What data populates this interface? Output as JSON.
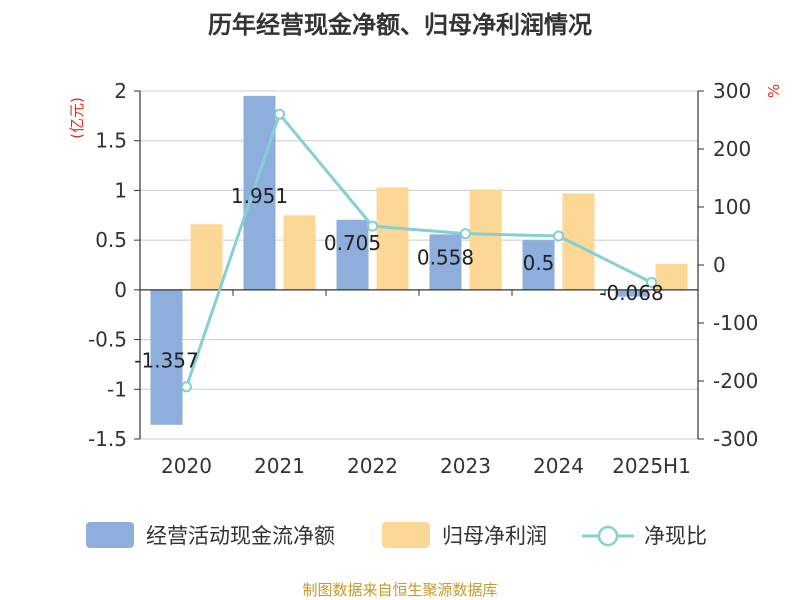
{
  "title": "历年经营现金净额、归母净利润情况",
  "source": "制图数据来自恒生聚源数据库",
  "colors": {
    "cash_flow": "#8eaedb",
    "net_profit": "#fdd795",
    "ratio": "#86d0d3",
    "axis_unit": "#e0301e",
    "source": "#c49a2c"
  },
  "chart_data": {
    "type": "bar",
    "title": "历年经营现金净额、归母净利润情况",
    "categories": [
      "2020",
      "2021",
      "2022",
      "2023",
      "2024",
      "2025H1"
    ],
    "left_axis": {
      "unit": "(亿元)",
      "ylim": [
        -1.5,
        2
      ],
      "ticks": [
        "2",
        "1.5",
        "1",
        "0.5",
        "0",
        "-0.5",
        "-1",
        "-1.5"
      ],
      "tick_values": [
        2,
        1.5,
        1,
        0.5,
        0,
        -0.5,
        -1,
        -1.5
      ]
    },
    "right_axis": {
      "unit": "%",
      "ylim": [
        -300,
        300
      ],
      "ticks": [
        "300",
        "200",
        "100",
        "0",
        "-100",
        "-200",
        "-300"
      ],
      "tick_values": [
        300,
        200,
        100,
        0,
        -100,
        -200,
        -300
      ]
    },
    "series": [
      {
        "name": "经营活动现金流净额",
        "kind": "bar",
        "axis": "left",
        "values": [
          -1.357,
          1.951,
          0.705,
          0.558,
          0.5,
          -0.068
        ],
        "labels": [
          "-1.357",
          "1.951",
          "0.705",
          "0.558",
          "0.5",
          "-0.068"
        ]
      },
      {
        "name": "归母净利润",
        "kind": "bar",
        "axis": "left",
        "values": [
          0.66,
          0.75,
          1.03,
          1.01,
          0.97,
          0.26
        ]
      },
      {
        "name": "净现比",
        "kind": "line",
        "axis": "right",
        "values": [
          -210,
          260,
          67,
          54,
          50,
          -30
        ]
      }
    ],
    "grid": true,
    "legend": "bottom"
  }
}
